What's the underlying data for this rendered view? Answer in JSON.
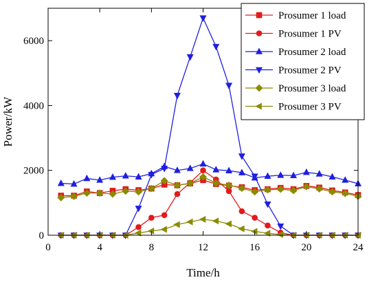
{
  "chart_data": {
    "type": "line",
    "title": "",
    "xlabel": "Time/h",
    "ylabel": "Power/kW",
    "xlim": [
      0,
      24
    ],
    "ylim": [
      0,
      7000
    ],
    "xticks": [
      0,
      4,
      8,
      12,
      16,
      20,
      24
    ],
    "yticks": [
      0,
      2000,
      4000,
      6000
    ],
    "grid": false,
    "legend_position": "top-right",
    "x": [
      1,
      2,
      3,
      4,
      5,
      6,
      7,
      8,
      9,
      10,
      11,
      12,
      13,
      14,
      15,
      16,
      17,
      18,
      19,
      20,
      21,
      22,
      23,
      24
    ],
    "series": [
      {
        "name": "Prosumer 1 load",
        "color": "#e31a1c",
        "marker": "square",
        "values": [
          1220,
          1220,
          1350,
          1300,
          1370,
          1420,
          1390,
          1440,
          1560,
          1540,
          1600,
          1700,
          1580,
          1530,
          1480,
          1390,
          1420,
          1460,
          1420,
          1520,
          1470,
          1380,
          1320,
          1240
        ]
      },
      {
        "name": "Prosumer 1 PV",
        "color": "#e31a1c",
        "marker": "circle",
        "values": [
          0,
          0,
          0,
          0,
          0,
          0,
          250,
          540,
          620,
          1270,
          1620,
          2000,
          1720,
          1360,
          740,
          540,
          300,
          80,
          0,
          0,
          0,
          0,
          0,
          0
        ]
      },
      {
        "name": "Prosumer 2 load",
        "color": "#1f1fe0",
        "marker": "triangle-up",
        "values": [
          1600,
          1580,
          1750,
          1700,
          1790,
          1830,
          1800,
          1900,
          2120,
          2000,
          2060,
          2200,
          2020,
          1990,
          1930,
          1770,
          1820,
          1850,
          1840,
          1940,
          1890,
          1800,
          1700,
          1590
        ]
      },
      {
        "name": "Prosumer 2 PV",
        "color": "#1f1fe0",
        "marker": "triangle-down",
        "values": [
          0,
          0,
          0,
          0,
          0,
          0,
          830,
          1870,
          2060,
          4310,
          5500,
          6700,
          5820,
          4620,
          2440,
          1820,
          960,
          280,
          0,
          0,
          0,
          0,
          0,
          0
        ]
      },
      {
        "name": "Prosumer 3 load",
        "color": "#8b8b00",
        "marker": "diamond",
        "values": [
          1160,
          1200,
          1300,
          1300,
          1270,
          1360,
          1340,
          1440,
          1680,
          1540,
          1600,
          1800,
          1610,
          1540,
          1450,
          1340,
          1400,
          1420,
          1380,
          1500,
          1430,
          1340,
          1290,
          1200
        ]
      },
      {
        "name": "Prosumer 3 PV",
        "color": "#8b8b00",
        "marker": "triangle-left",
        "values": [
          0,
          0,
          0,
          0,
          0,
          0,
          70,
          130,
          180,
          330,
          410,
          490,
          440,
          350,
          200,
          120,
          60,
          20,
          0,
          0,
          0,
          0,
          0,
          0
        ]
      }
    ]
  }
}
